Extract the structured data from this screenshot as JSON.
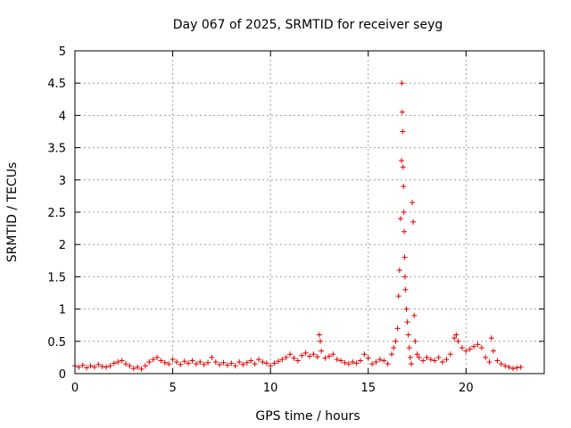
{
  "chart_data": {
    "type": "scatter",
    "title": "Day 067 of 2025, SRMTID for receiver seyg",
    "xlabel": "GPS time / hours",
    "ylabel": "SRMTID / TECUs",
    "xlim": [
      0,
      24
    ],
    "ylim": [
      0,
      5
    ],
    "xticks": [
      0,
      5,
      10,
      15,
      20
    ],
    "xtick_labels": [
      "0",
      "5",
      "10",
      "15",
      "20"
    ],
    "yticks": [
      0,
      0.5,
      1,
      1.5,
      2,
      2.5,
      3,
      3.5,
      4,
      4.5,
      5
    ],
    "ytick_labels": [
      "0",
      "0.5",
      "1",
      "1.5",
      "2",
      "2.5",
      "3",
      "3.5",
      "4",
      "4.5",
      "5"
    ],
    "grid": true,
    "marker": "+",
    "color": "#e00000",
    "series": [
      {
        "name": "SRMTID",
        "points": [
          [
            0.0,
            0.12
          ],
          [
            0.2,
            0.1
          ],
          [
            0.4,
            0.13
          ],
          [
            0.6,
            0.09
          ],
          [
            0.8,
            0.12
          ],
          [
            1.0,
            0.1
          ],
          [
            1.2,
            0.14
          ],
          [
            1.4,
            0.11
          ],
          [
            1.6,
            0.1
          ],
          [
            1.8,
            0.12
          ],
          [
            2.0,
            0.16
          ],
          [
            2.2,
            0.18
          ],
          [
            2.4,
            0.2
          ],
          [
            2.6,
            0.15
          ],
          [
            2.8,
            0.12
          ],
          [
            3.0,
            0.08
          ],
          [
            3.2,
            0.1
          ],
          [
            3.4,
            0.07
          ],
          [
            3.6,
            0.12
          ],
          [
            3.8,
            0.18
          ],
          [
            4.0,
            0.22
          ],
          [
            4.2,
            0.25
          ],
          [
            4.4,
            0.2
          ],
          [
            4.6,
            0.17
          ],
          [
            4.8,
            0.15
          ],
          [
            5.0,
            0.22
          ],
          [
            5.2,
            0.18
          ],
          [
            5.4,
            0.14
          ],
          [
            5.6,
            0.19
          ],
          [
            5.8,
            0.16
          ],
          [
            6.0,
            0.2
          ],
          [
            6.2,
            0.15
          ],
          [
            6.4,
            0.18
          ],
          [
            6.6,
            0.14
          ],
          [
            6.8,
            0.17
          ],
          [
            7.0,
            0.25
          ],
          [
            7.2,
            0.18
          ],
          [
            7.4,
            0.14
          ],
          [
            7.6,
            0.17
          ],
          [
            7.8,
            0.13
          ],
          [
            8.0,
            0.16
          ],
          [
            8.2,
            0.12
          ],
          [
            8.4,
            0.18
          ],
          [
            8.6,
            0.14
          ],
          [
            8.8,
            0.17
          ],
          [
            9.0,
            0.2
          ],
          [
            9.2,
            0.15
          ],
          [
            9.4,
            0.22
          ],
          [
            9.6,
            0.18
          ],
          [
            9.8,
            0.16
          ],
          [
            10.0,
            0.12
          ],
          [
            10.2,
            0.16
          ],
          [
            10.4,
            0.19
          ],
          [
            10.6,
            0.22
          ],
          [
            10.8,
            0.25
          ],
          [
            11.0,
            0.3
          ],
          [
            11.2,
            0.24
          ],
          [
            11.4,
            0.2
          ],
          [
            11.6,
            0.28
          ],
          [
            11.8,
            0.32
          ],
          [
            12.0,
            0.27
          ],
          [
            12.2,
            0.3
          ],
          [
            12.4,
            0.26
          ],
          [
            12.5,
            0.6
          ],
          [
            12.55,
            0.5
          ],
          [
            12.6,
            0.35
          ],
          [
            12.8,
            0.24
          ],
          [
            13.0,
            0.27
          ],
          [
            13.2,
            0.3
          ],
          [
            13.4,
            0.22
          ],
          [
            13.6,
            0.2
          ],
          [
            13.8,
            0.17
          ],
          [
            14.0,
            0.15
          ],
          [
            14.2,
            0.18
          ],
          [
            14.4,
            0.16
          ],
          [
            14.6,
            0.2
          ],
          [
            14.8,
            0.3
          ],
          [
            15.0,
            0.24
          ],
          [
            15.2,
            0.15
          ],
          [
            15.4,
            0.18
          ],
          [
            15.6,
            0.22
          ],
          [
            15.8,
            0.2
          ],
          [
            16.0,
            0.15
          ],
          [
            16.2,
            0.3
          ],
          [
            16.3,
            0.4
          ],
          [
            16.4,
            0.5
          ],
          [
            16.5,
            0.7
          ],
          [
            16.55,
            1.2
          ],
          [
            16.6,
            1.6
          ],
          [
            16.65,
            2.4
          ],
          [
            16.7,
            3.3
          ],
          [
            16.72,
            4.5
          ],
          [
            16.74,
            4.05
          ],
          [
            16.76,
            3.75
          ],
          [
            16.78,
            3.2
          ],
          [
            16.8,
            2.9
          ],
          [
            16.82,
            2.5
          ],
          [
            16.84,
            2.2
          ],
          [
            16.86,
            1.8
          ],
          [
            16.88,
            1.5
          ],
          [
            16.9,
            1.3
          ],
          [
            16.95,
            1.0
          ],
          [
            17.0,
            0.8
          ],
          [
            17.05,
            0.6
          ],
          [
            17.1,
            0.4
          ],
          [
            17.15,
            0.25
          ],
          [
            17.2,
            0.15
          ],
          [
            17.25,
            2.65
          ],
          [
            17.3,
            2.35
          ],
          [
            17.35,
            0.9
          ],
          [
            17.4,
            0.5
          ],
          [
            17.5,
            0.3
          ],
          [
            17.6,
            0.25
          ],
          [
            17.8,
            0.2
          ],
          [
            18.0,
            0.25
          ],
          [
            18.2,
            0.22
          ],
          [
            18.4,
            0.2
          ],
          [
            18.6,
            0.25
          ],
          [
            18.8,
            0.18
          ],
          [
            19.0,
            0.22
          ],
          [
            19.2,
            0.3
          ],
          [
            19.4,
            0.55
          ],
          [
            19.5,
            0.6
          ],
          [
            19.6,
            0.5
          ],
          [
            19.8,
            0.4
          ],
          [
            20.0,
            0.35
          ],
          [
            20.2,
            0.38
          ],
          [
            20.4,
            0.42
          ],
          [
            20.6,
            0.45
          ],
          [
            20.8,
            0.4
          ],
          [
            21.0,
            0.25
          ],
          [
            21.2,
            0.18
          ],
          [
            21.3,
            0.55
          ],
          [
            21.4,
            0.35
          ],
          [
            21.6,
            0.2
          ],
          [
            21.8,
            0.15
          ],
          [
            22.0,
            0.12
          ],
          [
            22.2,
            0.1
          ],
          [
            22.4,
            0.08
          ],
          [
            22.6,
            0.09
          ],
          [
            22.8,
            0.1
          ]
        ]
      }
    ]
  }
}
